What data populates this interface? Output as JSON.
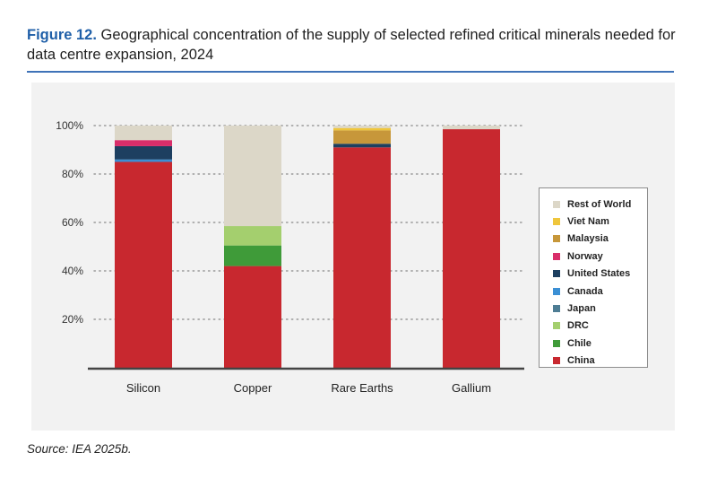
{
  "figure": {
    "label": "Figure 12.",
    "title": "Geographical concentration of the supply of selected refined critical minerals needed for data centre expansion, 2024",
    "source": "Source: IEA 2025b."
  },
  "chart_data": {
    "type": "bar",
    "stacked": true,
    "categories": [
      "Silicon",
      "Copper",
      "Rare Earths",
      "Gallium"
    ],
    "ylim": [
      0,
      100
    ],
    "yticks": [
      20,
      40,
      60,
      80,
      100
    ],
    "ytick_labels": [
      "20%",
      "40%",
      "60%",
      "80%",
      "100%"
    ],
    "grid": "dotted",
    "legend_position": "right",
    "legend_order": [
      "Rest of World",
      "Viet Nam",
      "Malaysia",
      "Norway",
      "United States",
      "Canada",
      "Japan",
      "DRC",
      "Chile",
      "China"
    ],
    "series": [
      {
        "name": "China",
        "color": "#c8282f",
        "values": [
          85,
          42,
          91,
          98.5
        ]
      },
      {
        "name": "Chile",
        "color": "#3f9b39",
        "values": [
          0,
          8.5,
          0,
          0
        ]
      },
      {
        "name": "DRC",
        "color": "#a4cf6e",
        "values": [
          0,
          8,
          0,
          0
        ]
      },
      {
        "name": "Japan",
        "color": "#4e7d94",
        "values": [
          0,
          0,
          0,
          0
        ]
      },
      {
        "name": "Canada",
        "color": "#3b8fd4",
        "values": [
          1,
          0,
          0,
          0
        ]
      },
      {
        "name": "United States",
        "color": "#1d3f60",
        "values": [
          5.5,
          0,
          1.5,
          0
        ]
      },
      {
        "name": "Norway",
        "color": "#d92e6a",
        "values": [
          2.5,
          0,
          0,
          0
        ]
      },
      {
        "name": "Malaysia",
        "color": "#c7973a",
        "values": [
          0,
          0,
          5.5,
          0
        ]
      },
      {
        "name": "Viet Nam",
        "color": "#efc63c",
        "values": [
          0,
          0,
          1,
          0
        ]
      },
      {
        "name": "Rest of World",
        "color": "#dcd7c8",
        "values": [
          6,
          41.5,
          1,
          1.5
        ]
      }
    ]
  }
}
